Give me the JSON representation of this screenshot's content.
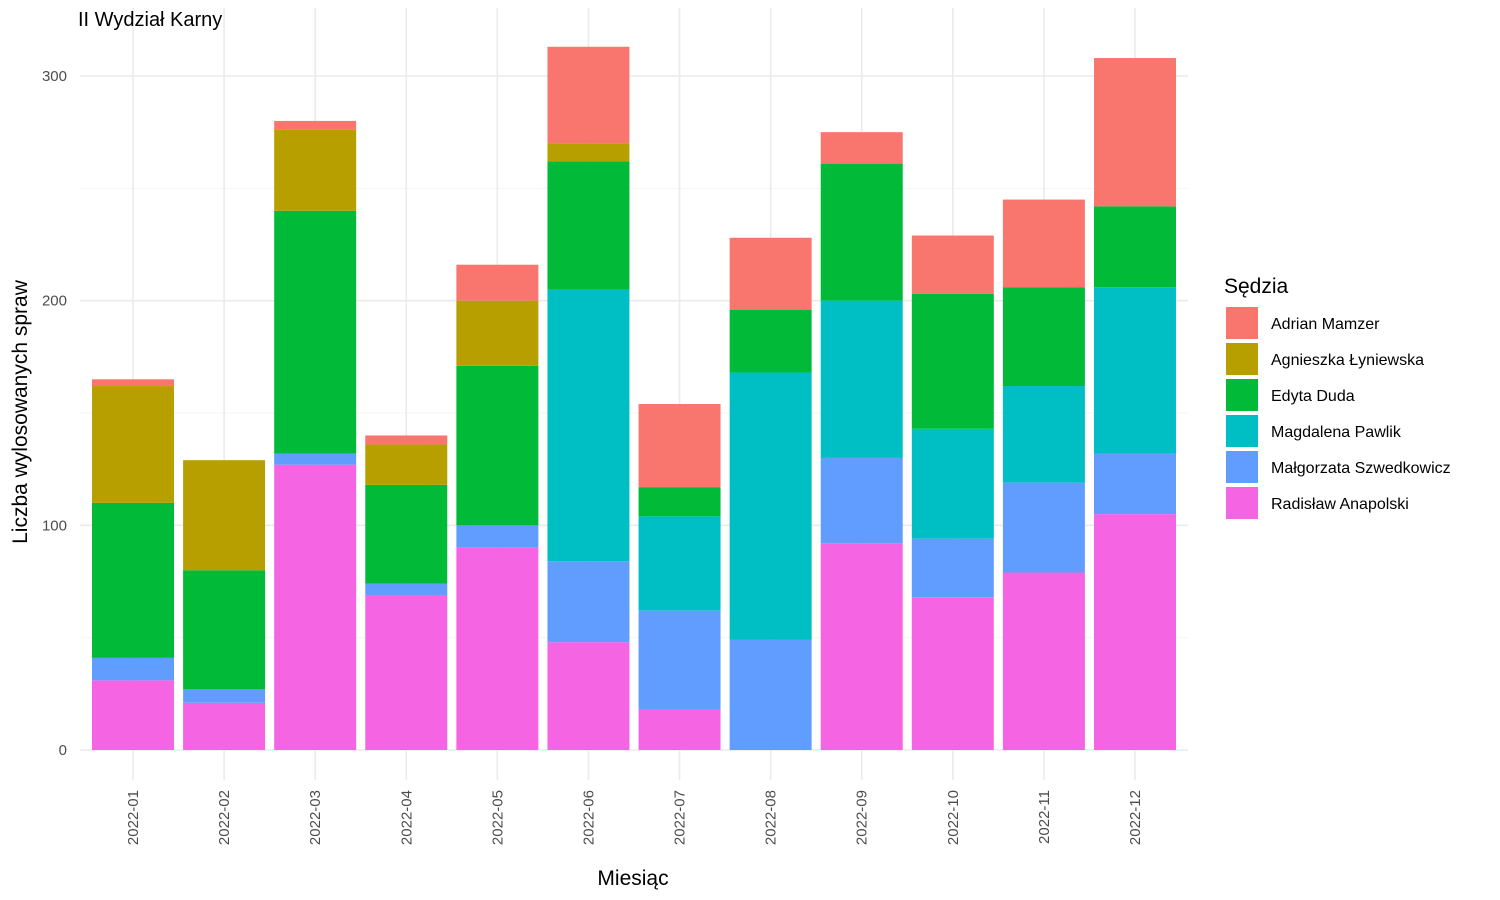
{
  "chart_data": {
    "type": "bar",
    "stacked": true,
    "title": "II Wydział Karny",
    "xlabel": "Miesiąc",
    "ylabel": "Liczba wylosowanych spraw",
    "ylim": [
      0,
      320
    ],
    "yticks": [
      0,
      100,
      200,
      300
    ],
    "grid": true,
    "legend_position": "right",
    "legend_title": "Sędzia",
    "categories": [
      "2022-01",
      "2022-02",
      "2022-03",
      "2022-04",
      "2022-05",
      "2022-06",
      "2022-07",
      "2022-08",
      "2022-09",
      "2022-10",
      "2022-11",
      "2022-12"
    ],
    "series": [
      {
        "name": "Adrian Mamzer",
        "color": "#F8766D",
        "values": [
          3,
          0,
          4,
          4,
          16,
          43,
          37,
          32,
          14,
          26,
          39,
          66
        ]
      },
      {
        "name": "Agnieszka Łyniewska",
        "color": "#B79F00",
        "values": [
          52,
          49,
          36,
          18,
          29,
          8,
          0,
          0,
          0,
          0,
          0,
          0
        ]
      },
      {
        "name": "Edyta Duda",
        "color": "#00BA38",
        "values": [
          69,
          53,
          108,
          44,
          71,
          57,
          13,
          28,
          61,
          60,
          44,
          36
        ]
      },
      {
        "name": "Magdalena Pawlik",
        "color": "#00BFC4",
        "values": [
          0,
          0,
          0,
          0,
          0,
          121,
          42,
          119,
          70,
          49,
          43,
          74
        ]
      },
      {
        "name": "Małgorzata Szwedkowicz",
        "color": "#619CFF",
        "values": [
          10,
          6,
          5,
          5,
          10,
          36,
          44,
          49,
          38,
          26,
          40,
          27
        ]
      },
      {
        "name": "Radisław Anapolski",
        "color": "#F564E3",
        "values": [
          31,
          21,
          127,
          69,
          90,
          48,
          18,
          0,
          92,
          68,
          79,
          105
        ]
      }
    ]
  }
}
